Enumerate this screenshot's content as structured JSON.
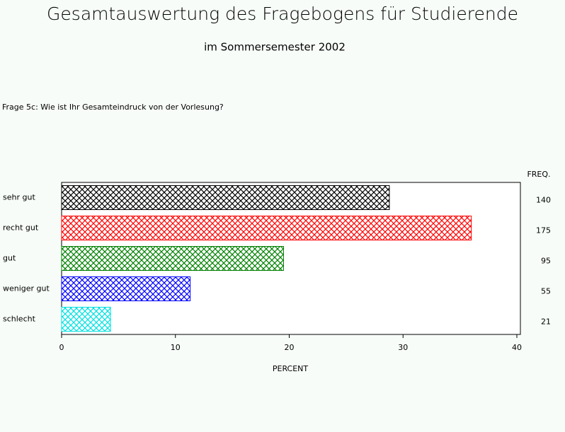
{
  "chart_data": {
    "type": "bar",
    "orientation": "horizontal",
    "title": "Gesamtauswertung des Fragebogens für Studierende",
    "subtitle": "im Sommersemester 2002",
    "question": "Frage 5c: Wie ist Ihr Gesamteindruck von der Vorlesung?",
    "categories": [
      "sehr gut",
      "recht gut",
      "gut",
      "weniger gut",
      "schlecht"
    ],
    "values": [
      28.8,
      36.0,
      19.5,
      11.3,
      4.3
    ],
    "colors": [
      "#000000",
      "#ff0000",
      "#008000",
      "#0000ff",
      "#00e0e0"
    ],
    "freq_label": "FREQ.",
    "freq": [
      140,
      175,
      95,
      55,
      21
    ],
    "xlabel": "PERCENT",
    "xlim": [
      0,
      40
    ],
    "xticks": [
      0,
      10,
      20,
      30,
      40
    ]
  }
}
